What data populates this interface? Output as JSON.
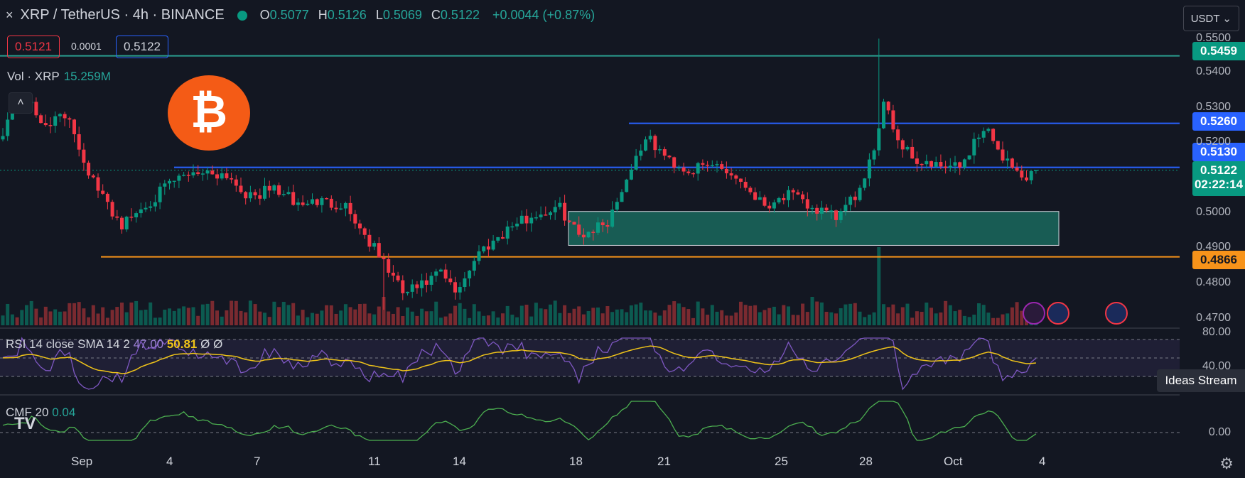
{
  "header": {
    "close": "×",
    "symbol": "XRP / TetherUS · 4h · BINANCE",
    "ohlc": [
      {
        "k": "O",
        "v": "0.5077"
      },
      {
        "k": "H",
        "v": "0.5126"
      },
      {
        "k": "L",
        "v": "0.5069"
      },
      {
        "k": "C",
        "v": "0.5122"
      }
    ],
    "change": "+0.0044 (+0.87%)"
  },
  "currency": "USDT",
  "currency_arrow": "⌄",
  "trade": {
    "sell": "0.5121",
    "spread": "0.0001",
    "buy": "0.5122"
  },
  "volume": {
    "label": "Vol · XRP",
    "value": "15.259M"
  },
  "collapse_icon": "˄",
  "logo_glyph": "₿",
  "rsi": {
    "label": "RSI 14 close SMA 14 2",
    "v1": "47.00",
    "v2": "50.81",
    "v3": "Ø",
    "v4": "Ø"
  },
  "cmf": {
    "label": "CMF 20",
    "value": "0.04"
  },
  "ideas": "Ideas Stream",
  "tv_logo": "TV",
  "gear_icon": "⚙",
  "price_tags": {
    "t1": "0.5459",
    "t2": "0.5260",
    "t3": "0.5130",
    "t4": "0.5122",
    "timer": "02:22:14",
    "t5": "0.4866"
  },
  "y_ticks": [
    "0.5500",
    "0.5400",
    "0.5300",
    "0.5200",
    "0.5000",
    "0.4900",
    "0.4800",
    "0.4700"
  ],
  "rsi_ticks": [
    "80.00",
    "40.00"
  ],
  "cmf_ticks": [
    "0.00"
  ],
  "x_ticks": [
    "Sep",
    "4",
    "7",
    "11",
    "14",
    "18",
    "21",
    "25",
    "28",
    "Oct",
    "4"
  ],
  "colors": {
    "bg": "#131722",
    "up": "#089981",
    "down": "#f23645",
    "teal_line": "#2a9d8f",
    "blue_line": "#2962ff",
    "orange": "#f7931a",
    "rsi": "#7e57c2",
    "rsi_ma": "#f0c419",
    "cmf": "#4caf50"
  },
  "chart_data": {
    "type": "candlestick",
    "title": "XRP / TetherUS · 4h · BINANCE",
    "ylim": [
      0.466,
      0.554
    ],
    "x_range": [
      "Aug 31",
      "Oct 4"
    ],
    "candles_per_day": 6,
    "bars": 196,
    "anchors": [
      [
        0,
        0.524
      ],
      [
        2,
        0.53
      ],
      [
        5,
        0.533
      ],
      [
        8,
        0.526
      ],
      [
        14,
        0.528
      ],
      [
        17,
        0.515
      ],
      [
        20,
        0.506
      ],
      [
        25,
        0.496
      ],
      [
        30,
        0.502
      ],
      [
        35,
        0.508
      ],
      [
        40,
        0.512
      ],
      [
        47,
        0.511
      ],
      [
        52,
        0.504
      ],
      [
        57,
        0.507
      ],
      [
        62,
        0.502
      ],
      [
        66,
        0.503
      ],
      [
        72,
        0.502
      ],
      [
        75,
        0.495
      ],
      [
        80,
        0.485
      ],
      [
        84,
        0.476
      ],
      [
        88,
        0.478
      ],
      [
        92,
        0.482
      ],
      [
        95,
        0.476
      ],
      [
        100,
        0.488
      ],
      [
        107,
        0.496
      ],
      [
        112,
        0.499
      ],
      [
        117,
        0.501
      ],
      [
        121,
        0.493
      ],
      [
        127,
        0.497
      ],
      [
        132,
        0.513
      ],
      [
        135,
        0.522
      ],
      [
        140,
        0.515
      ],
      [
        144,
        0.512
      ],
      [
        150,
        0.514
      ],
      [
        155,
        0.509
      ],
      [
        160,
        0.502
      ],
      [
        165,
        0.505
      ],
      [
        170,
        0.501
      ],
      [
        175,
        0.498
      ],
      [
        181,
        0.508
      ],
      [
        184,
        0.525
      ],
      [
        185,
        0.534
      ],
      [
        188,
        0.521
      ],
      [
        192,
        0.515
      ],
      [
        196,
        0.513
      ],
      [
        201,
        0.513
      ],
      [
        205,
        0.523
      ],
      [
        207,
        0.524
      ],
      [
        210,
        0.516
      ],
      [
        214,
        0.51
      ],
      [
        217,
        0.5122
      ]
    ],
    "levels": [
      {
        "price": 0.5459,
        "type": "horizontal"
      },
      {
        "price": 0.526,
        "type": "resistance"
      },
      {
        "price": 0.513,
        "type": "resistance"
      },
      {
        "price": 0.4866,
        "type": "support"
      }
    ],
    "zone": [
      0.49,
      0.5
    ],
    "last": {
      "open": 0.5077,
      "high": 0.5126,
      "low": 0.5069,
      "close": 0.5122
    }
  }
}
